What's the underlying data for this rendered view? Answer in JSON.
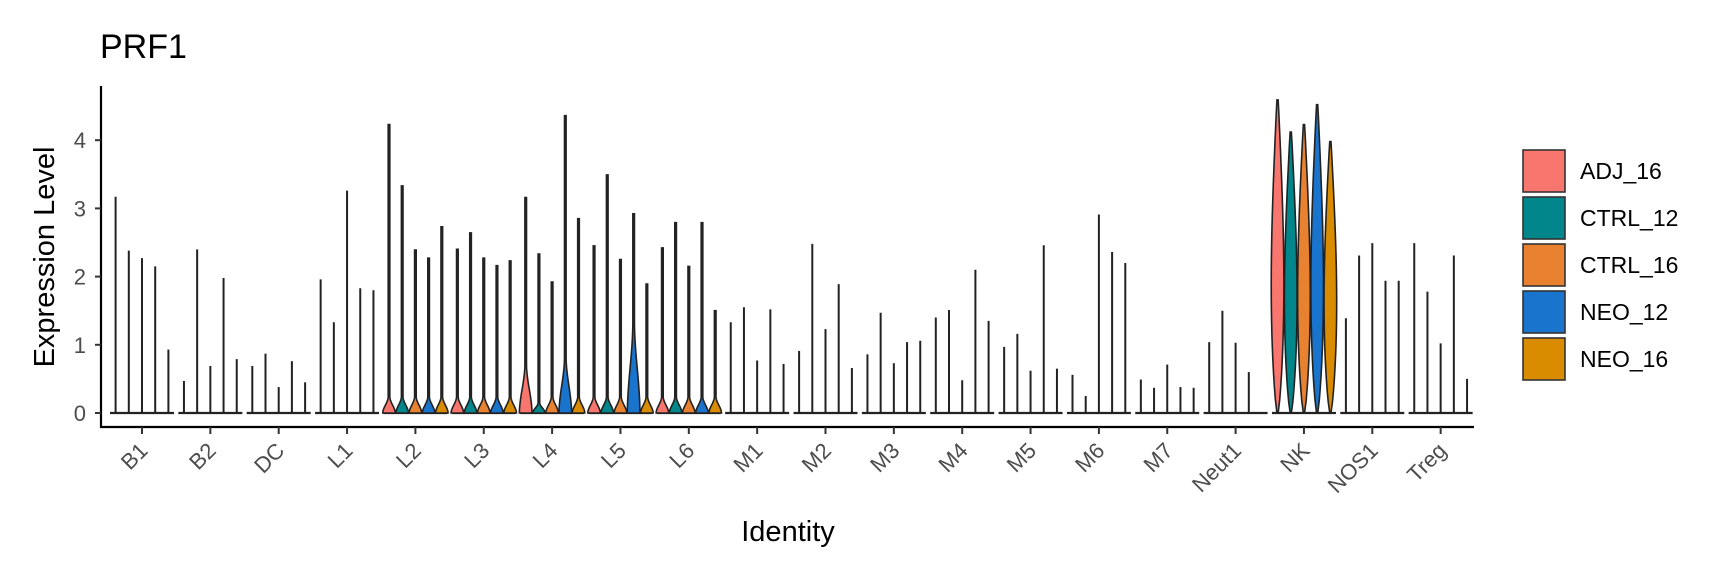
{
  "chart_data": {
    "type": "violin",
    "title": "PRF1",
    "xlabel": "Identity",
    "ylabel": "Expression Level",
    "ylim": [
      -0.2,
      4.8
    ],
    "yticks": [
      0,
      1,
      2,
      3,
      4
    ],
    "grid": false,
    "legend_position": "right",
    "categories": [
      "B1",
      "B2",
      "DC",
      "L1",
      "L2",
      "L3",
      "L4",
      "L5",
      "L6",
      "M1",
      "M2",
      "M3",
      "M4",
      "M5",
      "M6",
      "M7",
      "Neut1",
      "NK",
      "NOS1",
      "Treg"
    ],
    "series": [
      {
        "name": "ADJ_16",
        "color": "#F8766D",
        "max": [
          3.17,
          0.47,
          0.69,
          1.96,
          4.23,
          2.4,
          3.16,
          2.45,
          2.42,
          1.33,
          0.91,
          0.86,
          1.4,
          0.97,
          0.56,
          0.49,
          1.04,
          4.59,
          1.39,
          2.49
        ]
      },
      {
        "name": "CTRL_12",
        "color": "#00868B",
        "max": [
          2.38,
          2.4,
          0.87,
          1.33,
          3.33,
          2.64,
          2.33,
          3.49,
          2.79,
          1.55,
          2.48,
          1.47,
          1.51,
          1.16,
          0.25,
          0.37,
          1.5,
          4.12,
          2.31,
          1.78
        ]
      },
      {
        "name": "CTRL_16",
        "color": "#E88230",
        "max": [
          2.27,
          0.69,
          0.38,
          3.26,
          2.39,
          2.27,
          1.92,
          2.25,
          2.15,
          0.77,
          1.23,
          0.73,
          0.48,
          0.62,
          2.91,
          0.71,
          1.03,
          4.23,
          2.49,
          1.02
        ]
      },
      {
        "name": "NEO_12",
        "color": "#1874CD",
        "max": [
          2.15,
          1.98,
          0.76,
          1.83,
          2.27,
          2.16,
          4.36,
          2.92,
          2.79,
          1.52,
          1.89,
          1.04,
          2.1,
          2.46,
          2.36,
          0.38,
          0.6,
          4.52,
          1.94,
          2.31
        ]
      },
      {
        "name": "NEO_16",
        "color": "#D98C00",
        "max": [
          0.93,
          0.79,
          0.45,
          1.8,
          2.73,
          2.23,
          2.85,
          1.89,
          1.5,
          0.72,
          0.66,
          1.06,
          1.35,
          0.65,
          2.2,
          0.37,
          null,
          3.98,
          1.94,
          0.5
        ]
      }
    ]
  }
}
